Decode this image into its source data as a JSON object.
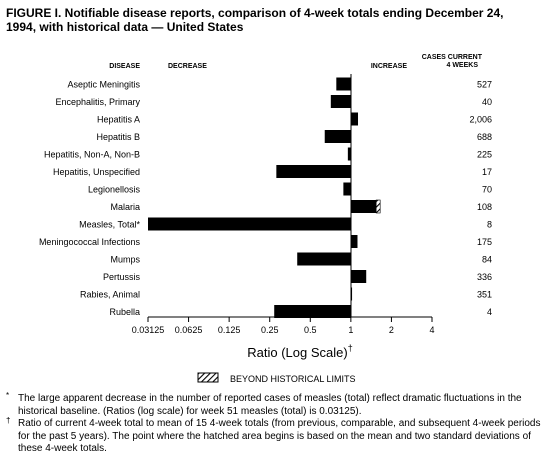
{
  "figure": {
    "title": "FIGURE I. Notifiable disease reports, comparison of 4-week totals ending December 24, 1994, with historical data — United States",
    "column_headers": {
      "disease": "DISEASE",
      "decrease": "DECREASE",
      "increase": "INCREASE",
      "cases_line1": "CASES CURRENT",
      "cases_line2": "4 WEEKS"
    },
    "legend_label": "BEYOND HISTORICAL LIMITS",
    "footnotes": [
      {
        "mark": "*",
        "text": "The large apparent decrease in the number of reported cases of measles (total) reflect dramatic fluctuations in the historical baseline. (Ratios (log scale) for week 51 measles (total) is 0.03125)."
      },
      {
        "mark": "†",
        "text": "Ratio of current 4-week total to mean of 15 4-week totals (from previous, comparable, and subsequent 4-week periods for the past 5 years). The point where the hatched area begins is based on the mean and two standard deviations of these 4-week totals."
      }
    ]
  },
  "chart_data": {
    "type": "bar",
    "orientation": "horizontal",
    "scale": "log2",
    "xlabel": "Ratio (Log Scale)",
    "xlabel_mark": "†",
    "xlim": [
      0.03125,
      4
    ],
    "xticks": [
      "0.03125",
      "0.0625",
      "0.125",
      "0.25",
      "0.5",
      "1",
      "2",
      "4"
    ],
    "categories": [
      "Aseptic Meningitis",
      "Encephalitis, Primary",
      "Hepatitis A",
      "Hepatitis B",
      "Hepatitis, Non-A, Non-B",
      "Hepatitis, Unspecified",
      "Legionellosis",
      "Malaria",
      "Measles, Total*",
      "Meningococcal Infections",
      "Mumps",
      "Pertussis",
      "Rabies, Animal",
      "Rubella"
    ],
    "values": [
      0.78,
      0.71,
      1.13,
      0.64,
      0.95,
      0.28,
      0.88,
      1.65,
      0.03125,
      1.12,
      0.4,
      1.3,
      1.01,
      0.27
    ],
    "beyond_historical_limits": [
      false,
      false,
      false,
      false,
      false,
      false,
      false,
      true,
      false,
      false,
      false,
      false,
      false,
      false
    ],
    "cases_current_4_weeks": [
      "527",
      "40",
      "2,006",
      "688",
      "225",
      "17",
      "70",
      "108",
      "8",
      "175",
      "84",
      "336",
      "351",
      "4"
    ],
    "colors": {
      "bar": "#000000",
      "hatch_bg": "#ffffff"
    }
  }
}
